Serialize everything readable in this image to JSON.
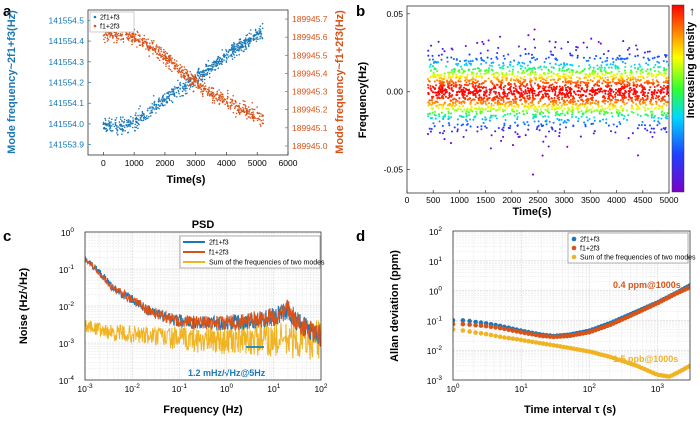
{
  "panel_letters": {
    "a": "a",
    "b": "b",
    "c": "c",
    "d": "d"
  },
  "colors": {
    "blue": "#1a78b8",
    "orange": "#d95319",
    "yellow": "#f0b323"
  },
  "chart_data": [
    {
      "panel": "a",
      "type": "scatter",
      "title": "",
      "xlabel": "Time(s)",
      "ylabel_left": "Mode frequency~2f1+f3(Hz)",
      "ylabel_right": "Mode frequency~f1+2f3(Hz)",
      "xlim": [
        -500,
        6000
      ],
      "x_ticks": [
        "0",
        "1000",
        "2000",
        "3000",
        "4000",
        "5000",
        "6000"
      ],
      "ylim_left": [
        141553.85,
        141554.55
      ],
      "y_ticks_left": [
        "141553.9",
        "141554.0",
        "141554.1",
        "141554.2",
        "141554.3",
        "141554.4",
        "141554.5"
      ],
      "ylim_right": [
        189944.95,
        189945.75
      ],
      "y_ticks_right": [
        "189945.0",
        "189945.1",
        "189945.2",
        "189945.3",
        "189945.4",
        "189945.5",
        "189945.6",
        "189945.7"
      ],
      "legend_position": "top-left",
      "series": [
        {
          "name": "2f1+f3",
          "axis": "left",
          "color": "#1a78b8",
          "x": [
            0,
            500,
            1000,
            1500,
            2000,
            2500,
            3000,
            3500,
            4000,
            4500,
            5000,
            5200
          ],
          "y": [
            141554.0,
            141553.99,
            141554.01,
            141554.06,
            141554.12,
            141554.17,
            141554.22,
            141554.27,
            141554.33,
            141554.38,
            141554.43,
            141554.45
          ]
        },
        {
          "name": "f1+2f3",
          "axis": "right",
          "color": "#d95319",
          "x": [
            0,
            500,
            1000,
            1500,
            2000,
            2500,
            3000,
            3500,
            4000,
            4500,
            5000,
            5200
          ],
          "y": [
            189945.62,
            189945.62,
            189945.6,
            189945.55,
            189945.49,
            189945.42,
            189945.35,
            189945.29,
            189945.24,
            189945.2,
            189945.16,
            189945.14
          ]
        }
      ]
    },
    {
      "panel": "b",
      "type": "scatter",
      "title": "",
      "xlabel": "Time(s)",
      "ylabel": "Frequency(Hz)",
      "xlim": [
        0,
        5000
      ],
      "x_ticks": [
        "0",
        "500",
        "1000",
        "1500",
        "2000",
        "2500",
        "3000",
        "3500",
        "4000",
        "4500",
        "5000"
      ],
      "ylim": [
        -0.065,
        0.055
      ],
      "y_ticks": [
        "-0.05",
        "0.00",
        "0.05"
      ],
      "colorbar_label": "Increasing density",
      "colorbar_arrow": "→",
      "series": [
        {
          "name": "frequency residual",
          "x_range": [
            400,
            5000
          ],
          "center": 0.0,
          "spread_std": 0.012
        }
      ]
    },
    {
      "panel": "c",
      "type": "line",
      "title": "PSD",
      "xlabel": "Frequency (Hz)",
      "ylabel": "Noise (Hz/√Hz)",
      "xscale": "log",
      "yscale": "log",
      "xlim": [
        0.001,
        100
      ],
      "ylim": [
        0.0001,
        1
      ],
      "x_ticks": [
        "10",
        "10",
        "10",
        "10",
        "10",
        "10"
      ],
      "x_tick_exponents": [
        "-3",
        "-2",
        "-1",
        "0",
        "1",
        "2"
      ],
      "y_ticks": [
        "10",
        "10",
        "10",
        "10",
        "10"
      ],
      "y_tick_exponents": [
        "-4",
        "-3",
        "-2",
        "-1",
        "0"
      ],
      "legend_position": "top-right",
      "annotation": "1.2 mHz/√Hz@5Hz",
      "series": [
        {
          "name": "2f1+f3",
          "color": "#1a78b8",
          "x": [
            0.001,
            0.002,
            0.004,
            0.01,
            0.02,
            0.05,
            0.1,
            0.3,
            1,
            3,
            10,
            20,
            30,
            60,
            100
          ],
          "y": [
            0.2,
            0.08,
            0.03,
            0.015,
            0.008,
            0.005,
            0.004,
            0.0035,
            0.0035,
            0.004,
            0.005,
            0.008,
            0.004,
            0.002,
            0.0015
          ]
        },
        {
          "name": "f1+2f3",
          "color": "#d95319",
          "x": [
            0.001,
            0.002,
            0.004,
            0.01,
            0.02,
            0.05,
            0.1,
            0.3,
            1,
            3,
            10,
            20,
            30,
            60,
            100
          ],
          "y": [
            0.2,
            0.08,
            0.03,
            0.015,
            0.008,
            0.005,
            0.004,
            0.0035,
            0.0035,
            0.004,
            0.005,
            0.008,
            0.004,
            0.002,
            0.0015
          ]
        },
        {
          "name": "Sum of the frequencies of two modes",
          "color": "#f0b323",
          "x": [
            0.001,
            0.003,
            0.01,
            0.03,
            0.1,
            0.3,
            1,
            3,
            10,
            30,
            100
          ],
          "y": [
            0.003,
            0.002,
            0.0017,
            0.0015,
            0.0013,
            0.0012,
            0.0012,
            0.0012,
            0.0012,
            0.0012,
            0.0012
          ]
        }
      ]
    },
    {
      "panel": "d",
      "type": "scatter",
      "title": "",
      "xlabel": "Time interval τ (s)",
      "ylabel": "Allan deviation (ppm)",
      "xscale": "log",
      "yscale": "log",
      "xlim": [
        1,
        3000
      ],
      "ylim": [
        0.001,
        100
      ],
      "x_ticks": [
        "10",
        "10",
        "10",
        "10"
      ],
      "x_tick_exponents": [
        "0",
        "1",
        "2",
        "3"
      ],
      "y_ticks": [
        "10",
        "10",
        "10",
        "10",
        "10",
        "10"
      ],
      "y_tick_exponents": [
        "-3",
        "-2",
        "-1",
        "0",
        "1",
        "2"
      ],
      "legend_position": "top-right",
      "annotations": [
        "0.4 ppm@1000s",
        "1.5 ppb@1000s"
      ],
      "series": [
        {
          "name": "2f1+f3",
          "color": "#1a78b8",
          "x": [
            1,
            1.5,
            2,
            3,
            5,
            10,
            20,
            30,
            50,
            100,
            200,
            500,
            1000,
            2000,
            3000
          ],
          "y": [
            0.1,
            0.1,
            0.09,
            0.08,
            0.065,
            0.045,
            0.033,
            0.03,
            0.033,
            0.045,
            0.08,
            0.2,
            0.4,
            0.9,
            1.5
          ]
        },
        {
          "name": "f1+2f3",
          "color": "#d95319",
          "x": [
            1,
            1.5,
            2,
            3,
            5,
            10,
            20,
            30,
            50,
            100,
            200,
            500,
            1000,
            2000,
            3000
          ],
          "y": [
            0.075,
            0.075,
            0.07,
            0.065,
            0.055,
            0.04,
            0.03,
            0.028,
            0.03,
            0.04,
            0.07,
            0.18,
            0.38,
            0.85,
            1.3
          ]
        },
        {
          "name": "Sum of the frequencies of two modes",
          "color": "#f0b323",
          "x": [
            1,
            1.5,
            2,
            3,
            5,
            10,
            20,
            50,
            100,
            200,
            500,
            1000,
            1500,
            2000,
            3000
          ],
          "y": [
            0.05,
            0.045,
            0.04,
            0.035,
            0.028,
            0.022,
            0.017,
            0.012,
            0.009,
            0.006,
            0.003,
            0.0015,
            0.0013,
            0.0018,
            0.003
          ]
        }
      ]
    }
  ]
}
